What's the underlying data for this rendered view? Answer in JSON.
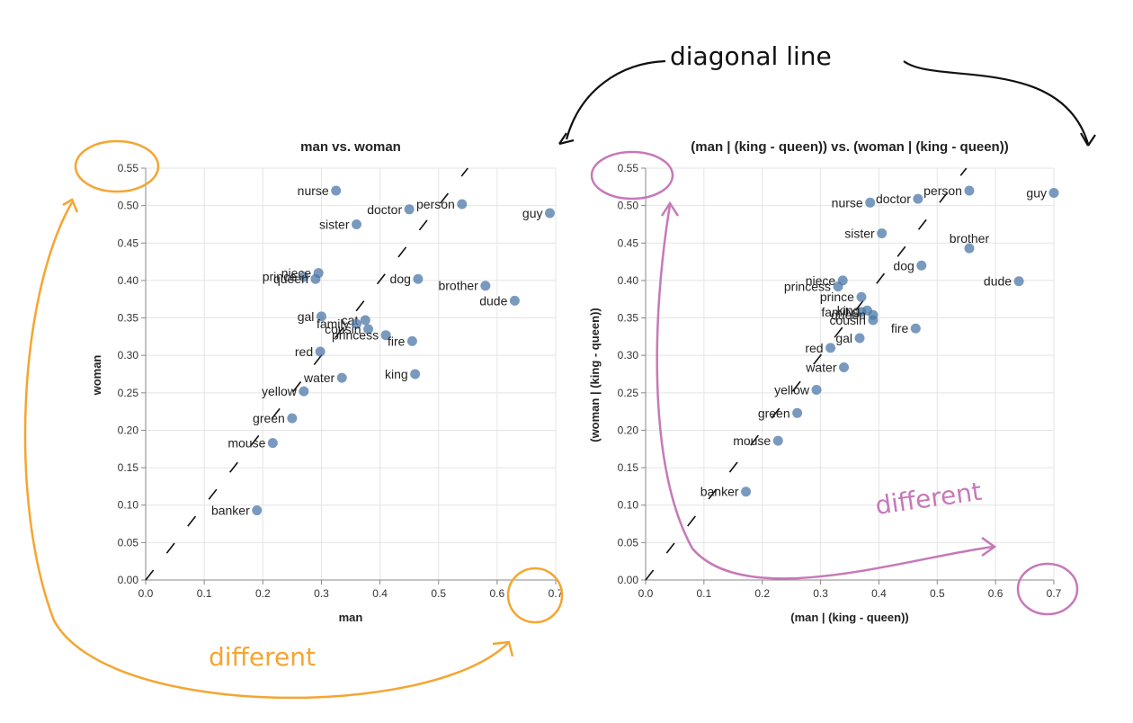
{
  "annotations": {
    "top": "diagonal line",
    "left": "different",
    "right": "different",
    "colors": {
      "orange": "#f5a531",
      "purple": "#c679b8",
      "ink": "#111111"
    }
  },
  "point_color": "#4c78a8",
  "chart_data": [
    {
      "type": "scatter",
      "title": "man vs. woman",
      "xlabel": "man",
      "ylabel": "woman",
      "xlim": [
        0,
        0.7
      ],
      "ylim": [
        0,
        0.55
      ],
      "x_ticks": [
        "0.0",
        "0.1",
        "0.2",
        "0.3",
        "0.4",
        "0.5",
        "0.6",
        "0.7"
      ],
      "y_ticks": [
        "0.00",
        "0.05",
        "0.10",
        "0.15",
        "0.20",
        "0.25",
        "0.30",
        "0.35",
        "0.40",
        "0.45",
        "0.50",
        "0.55"
      ],
      "grid": true,
      "diagonal": true,
      "points": [
        {
          "label": "nurse",
          "x": 0.325,
          "y": 0.52,
          "anchor": "left"
        },
        {
          "label": "doctor",
          "x": 0.45,
          "y": 0.495,
          "anchor": "left"
        },
        {
          "label": "person",
          "x": 0.54,
          "y": 0.502,
          "anchor": "left"
        },
        {
          "label": "sister",
          "x": 0.36,
          "y": 0.475,
          "anchor": "left"
        },
        {
          "label": "guy",
          "x": 0.69,
          "y": 0.49,
          "anchor": "left"
        },
        {
          "label": "prince",
          "x": 0.27,
          "y": 0.405,
          "anchor": "left"
        },
        {
          "label": "niece",
          "x": 0.295,
          "y": 0.41,
          "anchor": "left"
        },
        {
          "label": "queen",
          "x": 0.29,
          "y": 0.402,
          "anchor": "left"
        },
        {
          "label": "dog",
          "x": 0.465,
          "y": 0.402,
          "anchor": "left"
        },
        {
          "label": "brother",
          "x": 0.58,
          "y": 0.393,
          "anchor": "left"
        },
        {
          "label": "dude",
          "x": 0.63,
          "y": 0.373,
          "anchor": "left"
        },
        {
          "label": "gal",
          "x": 0.3,
          "y": 0.352,
          "anchor": "left"
        },
        {
          "label": "cat",
          "x": 0.375,
          "y": 0.347,
          "anchor": "left"
        },
        {
          "label": "family",
          "x": 0.36,
          "y": 0.342,
          "anchor": "left"
        },
        {
          "label": "cousin",
          "x": 0.38,
          "y": 0.335,
          "anchor": "left"
        },
        {
          "label": "princess",
          "x": 0.41,
          "y": 0.327,
          "anchor": "left"
        },
        {
          "label": "fire",
          "x": 0.455,
          "y": 0.319,
          "anchor": "left"
        },
        {
          "label": "red",
          "x": 0.298,
          "y": 0.305,
          "anchor": "left"
        },
        {
          "label": "water",
          "x": 0.335,
          "y": 0.27,
          "anchor": "left"
        },
        {
          "label": "king",
          "x": 0.46,
          "y": 0.275,
          "anchor": "left"
        },
        {
          "label": "yellow",
          "x": 0.27,
          "y": 0.252,
          "anchor": "left"
        },
        {
          "label": "green",
          "x": 0.25,
          "y": 0.216,
          "anchor": "left"
        },
        {
          "label": "mouse",
          "x": 0.217,
          "y": 0.183,
          "anchor": "left"
        },
        {
          "label": "banker",
          "x": 0.19,
          "y": 0.093,
          "anchor": "left"
        }
      ]
    },
    {
      "type": "scatter",
      "title": "(man | (king - queen)) vs. (woman | (king - queen))",
      "xlabel": "(man | (king - queen))",
      "ylabel": "(woman | (king - queen))",
      "xlim": [
        0,
        0.7
      ],
      "ylim": [
        0,
        0.55
      ],
      "x_ticks": [
        "0.0",
        "0.1",
        "0.2",
        "0.3",
        "0.4",
        "0.5",
        "0.6",
        "0.7"
      ],
      "y_ticks": [
        "0.00",
        "0.05",
        "0.10",
        "0.15",
        "0.20",
        "0.25",
        "0.30",
        "0.35",
        "0.40",
        "0.45",
        "0.50",
        "0.55"
      ],
      "grid": true,
      "diagonal": true,
      "points": [
        {
          "label": "nurse",
          "x": 0.385,
          "y": 0.504,
          "anchor": "left"
        },
        {
          "label": "doctor",
          "x": 0.467,
          "y": 0.509,
          "anchor": "left"
        },
        {
          "label": "person",
          "x": 0.555,
          "y": 0.52,
          "anchor": "left"
        },
        {
          "label": "guy",
          "x": 0.7,
          "y": 0.517,
          "anchor": "left"
        },
        {
          "label": "sister",
          "x": 0.405,
          "y": 0.463,
          "anchor": "left"
        },
        {
          "label": "brother",
          "x": 0.555,
          "y": 0.443,
          "anchor": "right"
        },
        {
          "label": "dog",
          "x": 0.473,
          "y": 0.42,
          "anchor": "left"
        },
        {
          "label": "niece",
          "x": 0.338,
          "y": 0.4,
          "anchor": "left"
        },
        {
          "label": "princess",
          "x": 0.33,
          "y": 0.392,
          "anchor": "left"
        },
        {
          "label": "dude",
          "x": 0.64,
          "y": 0.399,
          "anchor": "left"
        },
        {
          "label": "prince",
          "x": 0.37,
          "y": 0.378,
          "anchor": "left"
        },
        {
          "label": "family",
          "x": 0.37,
          "y": 0.358,
          "anchor": "left"
        },
        {
          "label": "king",
          "x": 0.38,
          "y": 0.36,
          "anchor": "left"
        },
        {
          "label": "queen",
          "x": 0.39,
          "y": 0.354,
          "anchor": "left"
        },
        {
          "label": "cousin",
          "x": 0.39,
          "y": 0.347,
          "anchor": "left"
        },
        {
          "label": "fire",
          "x": 0.463,
          "y": 0.336,
          "anchor": "left"
        },
        {
          "label": "gal",
          "x": 0.367,
          "y": 0.323,
          "anchor": "left"
        },
        {
          "label": "red",
          "x": 0.317,
          "y": 0.31,
          "anchor": "left"
        },
        {
          "label": "water",
          "x": 0.34,
          "y": 0.284,
          "anchor": "left"
        },
        {
          "label": "yellow",
          "x": 0.293,
          "y": 0.254,
          "anchor": "left"
        },
        {
          "label": "green",
          "x": 0.26,
          "y": 0.223,
          "anchor": "left"
        },
        {
          "label": "mouse",
          "x": 0.227,
          "y": 0.186,
          "anchor": "left"
        },
        {
          "label": "banker",
          "x": 0.172,
          "y": 0.118,
          "anchor": "left"
        }
      ]
    }
  ]
}
